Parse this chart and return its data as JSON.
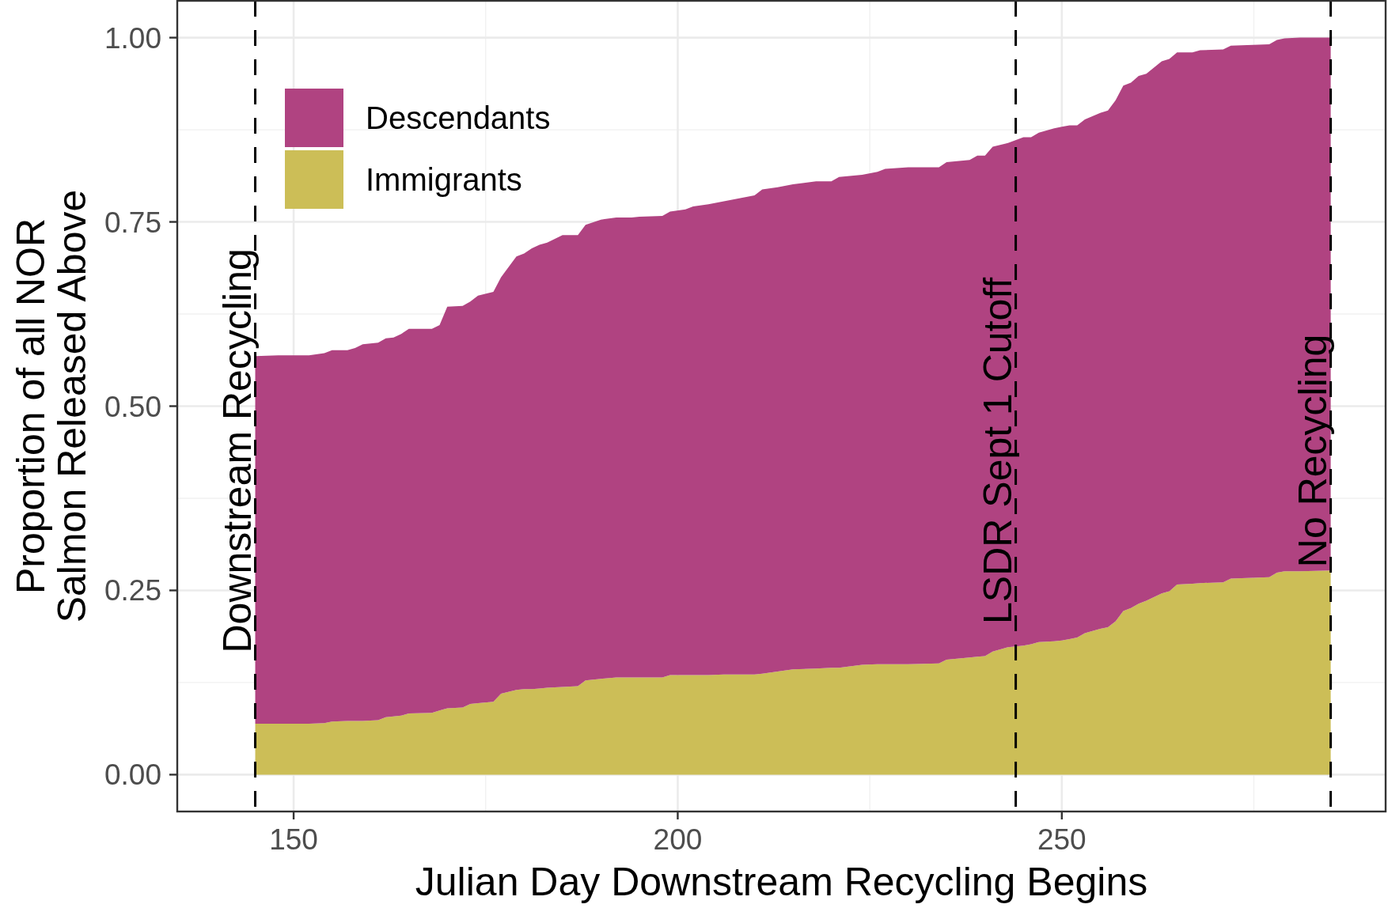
{
  "chart_data": {
    "type": "area",
    "xlabel": "Julian Day Downstream Recycling Begins",
    "ylabel": "Proportion of all NOR\nSalmon Released Above",
    "x": [
      145,
      148,
      152,
      154,
      155,
      157,
      158,
      159,
      161,
      162,
      163,
      164,
      165,
      168,
      169,
      170,
      172,
      173,
      174,
      176,
      177,
      179,
      180,
      181,
      182,
      183,
      185,
      187,
      188,
      190,
      192,
      194,
      195,
      198,
      199,
      201,
      202,
      204,
      206,
      208,
      210,
      211,
      213,
      215,
      218,
      220,
      221,
      224,
      226,
      227,
      230,
      234,
      235,
      238,
      239,
      240,
      241,
      243,
      245,
      246,
      247,
      249,
      250,
      251,
      252,
      253,
      255,
      256,
      257,
      258,
      259,
      260,
      261,
      263,
      264,
      265,
      267,
      268,
      271,
      272,
      277,
      278,
      279,
      281,
      285
    ],
    "series": [
      {
        "name": "Immigrants",
        "color": "#ccbe57",
        "values": [
          0.069,
          0.069,
          0.069,
          0.07,
          0.072,
          0.073,
          0.073,
          0.073,
          0.074,
          0.078,
          0.079,
          0.08,
          0.083,
          0.084,
          0.087,
          0.09,
          0.091,
          0.096,
          0.097,
          0.099,
          0.11,
          0.115,
          0.116,
          0.116,
          0.117,
          0.118,
          0.119,
          0.12,
          0.128,
          0.13,
          0.132,
          0.132,
          0.132,
          0.132,
          0.135,
          0.135,
          0.135,
          0.135,
          0.136,
          0.136,
          0.136,
          0.137,
          0.14,
          0.143,
          0.144,
          0.145,
          0.145,
          0.149,
          0.15,
          0.15,
          0.15,
          0.151,
          0.156,
          0.159,
          0.16,
          0.161,
          0.167,
          0.173,
          0.175,
          0.177,
          0.18,
          0.181,
          0.182,
          0.184,
          0.186,
          0.192,
          0.198,
          0.2,
          0.208,
          0.222,
          0.226,
          0.232,
          0.236,
          0.246,
          0.249,
          0.258,
          0.259,
          0.26,
          0.261,
          0.266,
          0.268,
          0.274,
          0.276,
          0.276,
          0.277
        ]
      },
      {
        "name": "Descendants",
        "color": "#b04381",
        "values": [
          0.499,
          0.5,
          0.5,
          0.502,
          0.504,
          0.503,
          0.506,
          0.511,
          0.512,
          0.514,
          0.514,
          0.518,
          0.522,
          0.521,
          0.523,
          0.545,
          0.545,
          0.546,
          0.553,
          0.556,
          0.565,
          0.588,
          0.591,
          0.598,
          0.602,
          0.604,
          0.613,
          0.612,
          0.618,
          0.623,
          0.624,
          0.624,
          0.625,
          0.626,
          0.629,
          0.632,
          0.636,
          0.639,
          0.642,
          0.646,
          0.65,
          0.657,
          0.657,
          0.658,
          0.661,
          0.66,
          0.666,
          0.665,
          0.668,
          0.672,
          0.674,
          0.673,
          0.675,
          0.675,
          0.68,
          0.679,
          0.685,
          0.684,
          0.69,
          0.688,
          0.691,
          0.696,
          0.697,
          0.697,
          0.695,
          0.697,
          0.7,
          0.701,
          0.707,
          0.713,
          0.713,
          0.716,
          0.715,
          0.722,
          0.722,
          0.722,
          0.721,
          0.723,
          0.723,
          0.723,
          0.723,
          0.723,
          0.723,
          0.724,
          0.723
        ]
      }
    ],
    "stacked": true,
    "xlim": [
      134.85,
      292.15
    ],
    "ylim": [
      -0.05,
      1.05
    ],
    "xticks": [
      150,
      200,
      250
    ],
    "yticks": [
      {
        "value": 0,
        "label": "0.00"
      },
      {
        "value": 0.25,
        "label": "0.25"
      },
      {
        "value": 0.5,
        "label": "0.50"
      },
      {
        "value": 0.75,
        "label": "0.75"
      },
      {
        "value": 1,
        "label": "1.00"
      }
    ],
    "grid": true,
    "legend": "top left",
    "ref_lines": [
      {
        "axis": "x",
        "value": 145,
        "label": "Downstream Recycling",
        "line_style": "dashed",
        "color": "#000000"
      },
      {
        "axis": "x",
        "value": 244,
        "label": "LSDR Sept 1 Cutoff",
        "line_style": "dashed",
        "color": "#000000"
      },
      {
        "axis": "x",
        "value": 285,
        "label": "No Recycling",
        "line_style": "dashed",
        "color": "#000000"
      }
    ]
  }
}
